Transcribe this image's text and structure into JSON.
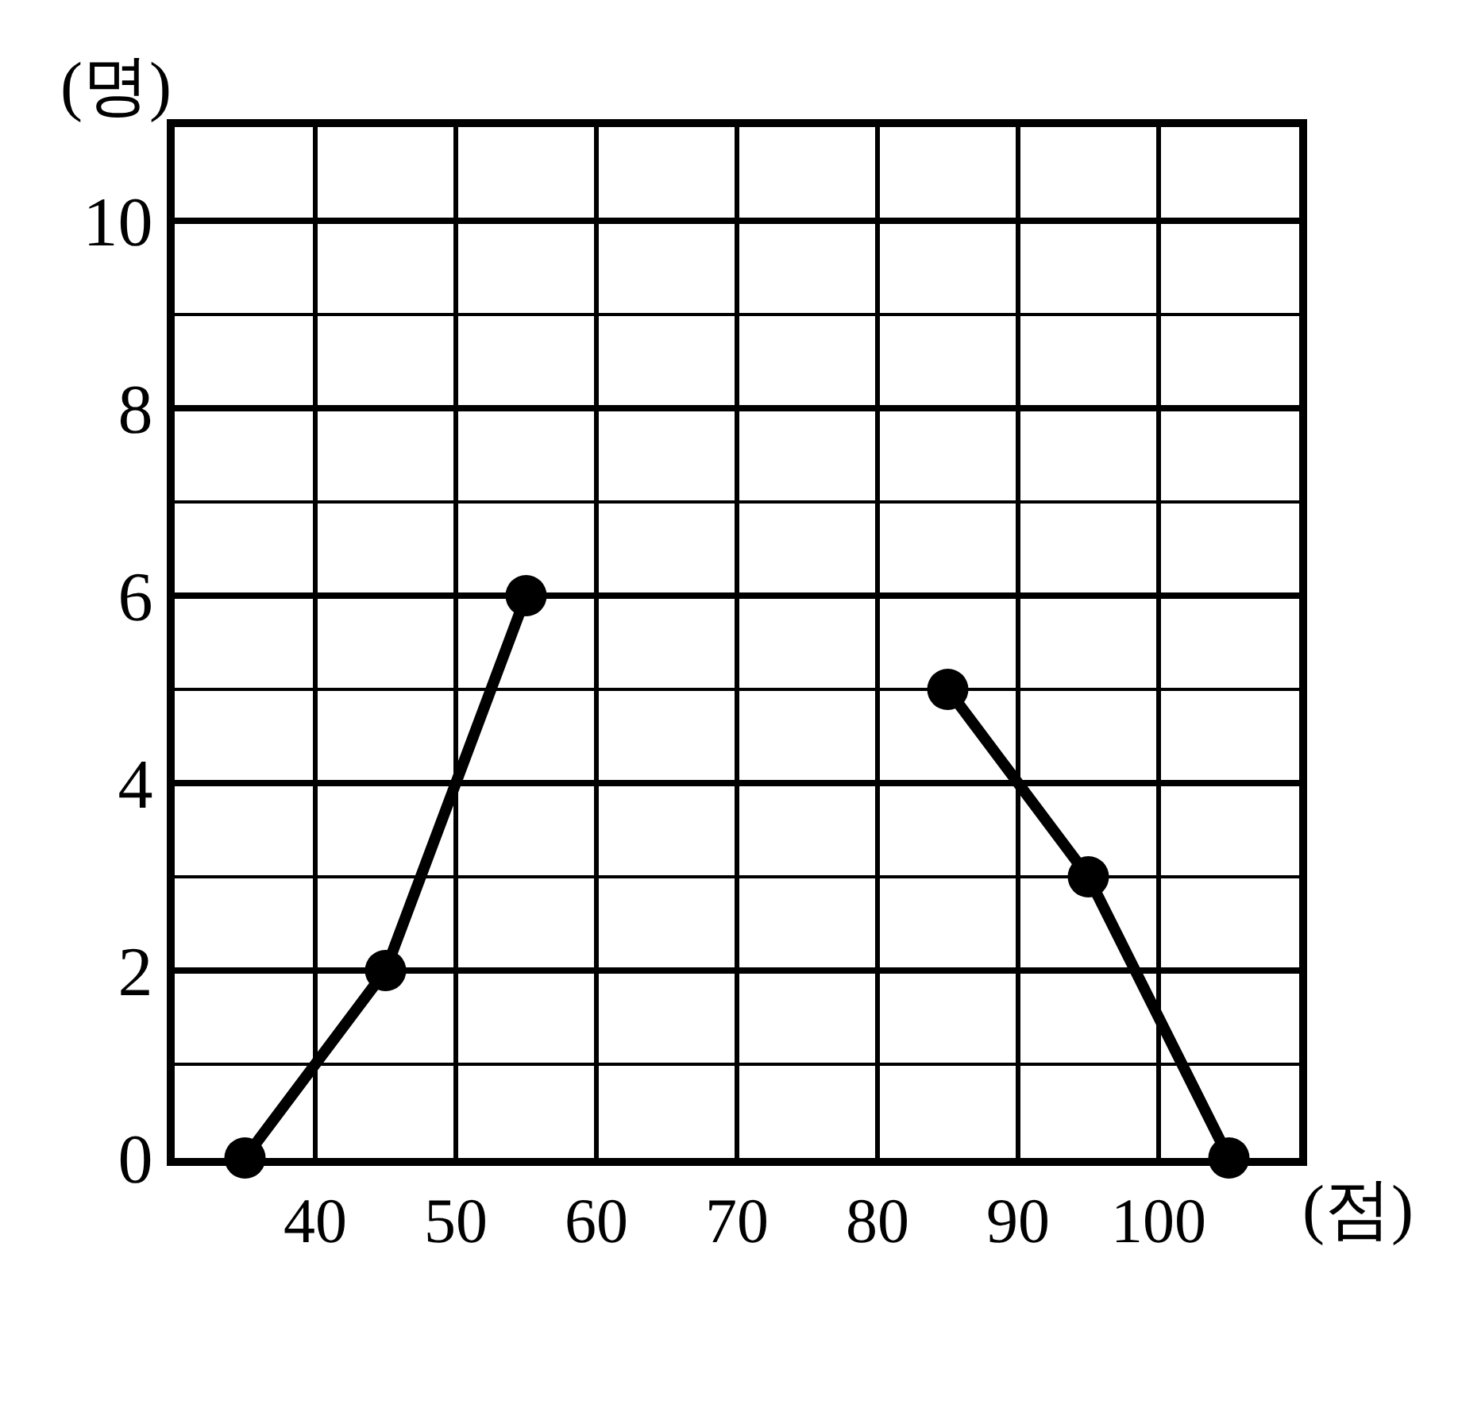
{
  "chart_data": {
    "type": "line",
    "xlabel": "(점)",
    "ylabel": "(명)",
    "x": [
      35,
      45,
      55,
      65,
      75,
      85,
      95,
      105
    ],
    "values": [
      0,
      2,
      6,
      null,
      null,
      5,
      3,
      0
    ],
    "color": "#000000",
    "marker": "circle",
    "line_style": "solid",
    "xlim": [
      30,
      110
    ],
    "xticks": [
      40,
      50,
      60,
      70,
      80,
      90,
      100
    ],
    "ylim": [
      0,
      11
    ],
    "yticks": [
      0,
      2,
      4,
      6,
      8,
      10
    ],
    "grid": true
  }
}
